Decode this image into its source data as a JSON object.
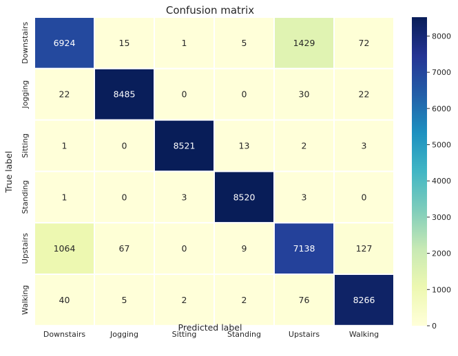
{
  "chart_data": {
    "type": "heatmap",
    "title": "Confusion matrix",
    "xlabel": "Predicted label",
    "ylabel": "True label",
    "x_categories": [
      "Downstairs",
      "Jogging",
      "Sitting",
      "Standing",
      "Upstairs",
      "Walking"
    ],
    "y_categories": [
      "Downstairs",
      "Jogging",
      "Sitting",
      "Standing",
      "Upstairs",
      "Walking"
    ],
    "values": [
      [
        6924,
        15,
        1,
        5,
        1429,
        72
      ],
      [
        22,
        8485,
        0,
        0,
        30,
        22
      ],
      [
        1,
        0,
        8521,
        13,
        2,
        3
      ],
      [
        1,
        0,
        3,
        8520,
        3,
        0
      ],
      [
        1064,
        67,
        0,
        9,
        7138,
        127
      ],
      [
        40,
        5,
        2,
        2,
        76,
        8266
      ]
    ],
    "colormap": "YlGnBu",
    "colorbar": {
      "range": [
        0,
        8521
      ],
      "ticks": [
        0,
        1000,
        2000,
        3000,
        4000,
        5000,
        6000,
        7000,
        8000
      ]
    }
  }
}
